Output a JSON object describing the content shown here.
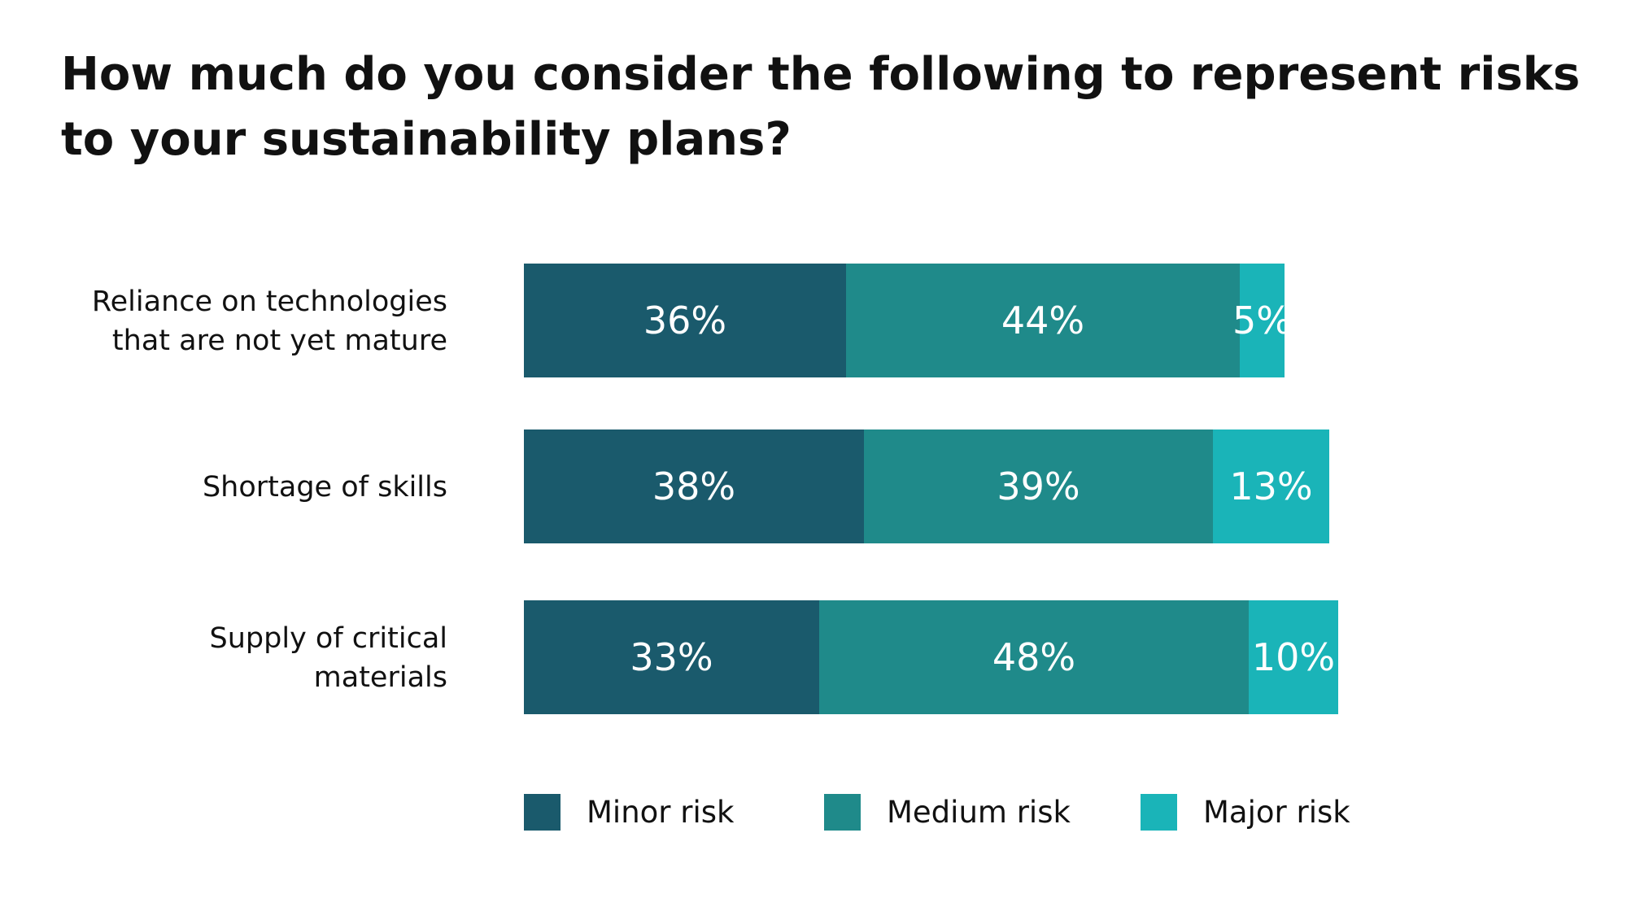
{
  "chart_data": {
    "type": "bar",
    "orientation": "horizontal",
    "stacked": true,
    "title_lines": [
      "How much do you consider the following to represent risks",
      "to your sustainability plans?"
    ],
    "categories": [
      [
        "Reliance on technologies",
        "that are not yet mature"
      ],
      [
        "Shortage of skills"
      ],
      [
        "Supply of critical",
        "materials"
      ]
    ],
    "series": [
      {
        "name": "Minor risk",
        "color": "#1a5a6c",
        "values": [
          36,
          38,
          33
        ],
        "labels": [
          "36%",
          "38%",
          "33%"
        ]
      },
      {
        "name": "Medium risk",
        "color": "#1f8a8a",
        "values": [
          44,
          39,
          48
        ],
        "labels": [
          "44%",
          "39%",
          "48%"
        ]
      },
      {
        "name": "Major risk",
        "color": "#1ab4b8",
        "values": [
          5,
          13,
          10
        ],
        "labels": [
          "5%",
          "13%",
          "10%"
        ]
      }
    ],
    "xlim": [
      0,
      100
    ],
    "grid": false,
    "legend_position": "bottom"
  }
}
